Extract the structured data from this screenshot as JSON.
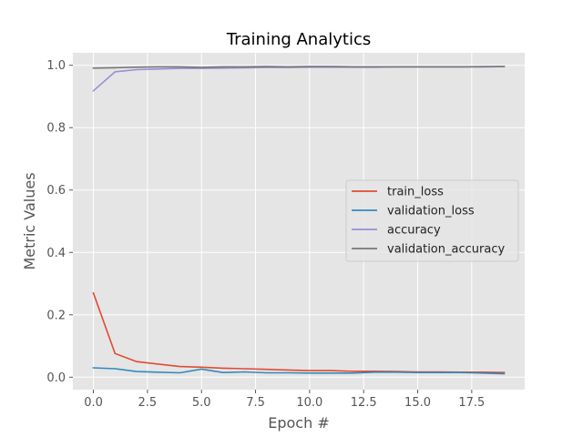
{
  "chart_data": {
    "type": "line",
    "title": "Training Analytics",
    "xlabel": "Epoch #",
    "ylabel": "Metric Values",
    "xlim": [
      -0.95,
      19.95
    ],
    "ylim": [
      -0.04,
      1.04
    ],
    "xticks": [
      0.0,
      2.5,
      5.0,
      7.5,
      10.0,
      12.5,
      15.0,
      17.5
    ],
    "xtick_labels": [
      "0.0",
      "2.5",
      "5.0",
      "7.5",
      "10.0",
      "12.5",
      "15.0",
      "17.5"
    ],
    "yticks": [
      0.0,
      0.2,
      0.4,
      0.6,
      0.8,
      1.0
    ],
    "ytick_labels": [
      "0.0",
      "0.2",
      "0.4",
      "0.6",
      "0.8",
      "1.0"
    ],
    "grid": true,
    "legend_position": "center-right",
    "x": [
      0,
      1,
      2,
      3,
      4,
      5,
      6,
      7,
      8,
      9,
      10,
      11,
      12,
      13,
      14,
      15,
      16,
      17,
      18,
      19
    ],
    "series": [
      {
        "name": "train_loss",
        "color": "#E24A33",
        "values": [
          0.27,
          0.076,
          0.05,
          0.042,
          0.034,
          0.032,
          0.029,
          0.027,
          0.025,
          0.023,
          0.021,
          0.021,
          0.019,
          0.019,
          0.018,
          0.017,
          0.017,
          0.016,
          0.016,
          0.015
        ]
      },
      {
        "name": "validation_loss",
        "color": "#348ABD",
        "values": [
          0.03,
          0.027,
          0.018,
          0.016,
          0.014,
          0.026,
          0.015,
          0.017,
          0.014,
          0.014,
          0.013,
          0.013,
          0.013,
          0.016,
          0.016,
          0.015,
          0.015,
          0.015,
          0.013,
          0.011
        ]
      },
      {
        "name": "accuracy",
        "color": "#988ED5",
        "values": [
          0.918,
          0.979,
          0.986,
          0.988,
          0.99,
          0.99,
          0.991,
          0.992,
          0.993,
          0.993,
          0.994,
          0.994,
          0.994,
          0.994,
          0.995,
          0.995,
          0.995,
          0.995,
          0.996,
          0.996
        ]
      },
      {
        "name": "validation_accuracy",
        "color": "#777777",
        "values": [
          0.991,
          0.992,
          0.994,
          0.995,
          0.995,
          0.993,
          0.995,
          0.995,
          0.996,
          0.995,
          0.996,
          0.996,
          0.995,
          0.995,
          0.995,
          0.995,
          0.995,
          0.995,
          0.995,
          0.996
        ]
      }
    ],
    "colors": {
      "plot_background": "#E5E5E5",
      "grid": "#FFFFFF"
    }
  }
}
